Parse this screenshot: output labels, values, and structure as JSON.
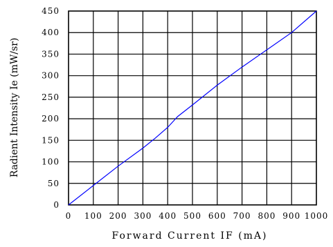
{
  "chart_data": {
    "type": "line",
    "title": "",
    "xlabel": "Forward Current IF (mA)",
    "ylabel": "Radient Intensity Ie (mW/sr)",
    "xlim": [
      0,
      1000
    ],
    "ylim": [
      0,
      450
    ],
    "x_ticks": [
      "0",
      "100",
      "200",
      "300",
      "400",
      "500",
      "600",
      "700",
      "800",
      "900",
      "1000"
    ],
    "y_ticks": [
      "0",
      "50",
      "100",
      "150",
      "200",
      "250",
      "300",
      "350",
      "400",
      "450"
    ],
    "grid": true,
    "line_color": "#0000ff",
    "series": [
      {
        "x": [
          0,
          100,
          200,
          300,
          350,
          400,
          440,
          500,
          600,
          700,
          800,
          900,
          1000
        ],
        "y": [
          0,
          45,
          90,
          132,
          155,
          180,
          205,
          232,
          278,
          320,
          360,
          400,
          450
        ]
      }
    ]
  }
}
